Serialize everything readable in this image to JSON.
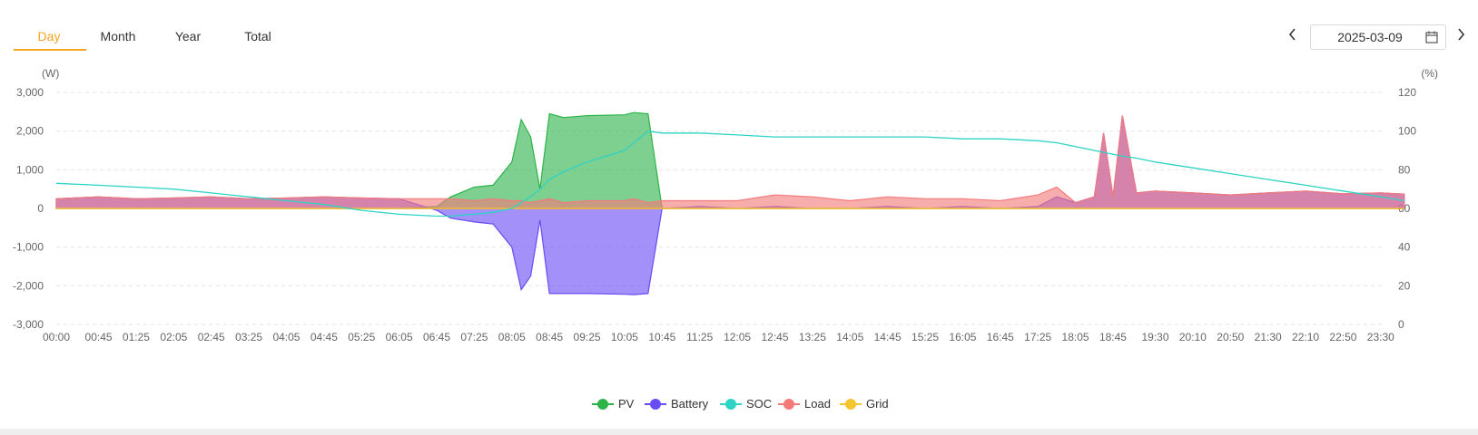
{
  "tabs": [
    {
      "label": "Day",
      "active": true
    },
    {
      "label": "Month",
      "active": false
    },
    {
      "label": "Year",
      "active": false
    },
    {
      "label": "Total",
      "active": false
    }
  ],
  "date_nav": {
    "date": "2025-03-09",
    "prev_icon": "chevron-left-icon",
    "next_icon": "chevron-right-icon",
    "calendar_icon": "calendar-icon"
  },
  "legend": [
    {
      "name": "PV",
      "color": "#2db34a"
    },
    {
      "name": "Battery",
      "color": "#6a4cf5"
    },
    {
      "name": "SOC",
      "color": "#2dd4c4"
    },
    {
      "name": "Load",
      "color": "#f47a7a"
    },
    {
      "name": "Grid",
      "color": "#f5c431"
    }
  ],
  "chart_data": {
    "type": "area",
    "ylabel": "(W)",
    "y2label": "(%)",
    "ylim": [
      -3000,
      3000
    ],
    "y2lim": [
      0,
      120
    ],
    "yticks": [
      "3,000",
      "2,000",
      "1,000",
      "0",
      "-1,000",
      "-2,000",
      "-3,000"
    ],
    "y2ticks": [
      "120",
      "100",
      "80",
      "60",
      "40",
      "20",
      "0"
    ],
    "grid": true,
    "legend_position": "bottom",
    "xticks": [
      "00:00",
      "00:45",
      "01:25",
      "02:05",
      "02:45",
      "03:25",
      "04:05",
      "04:45",
      "05:25",
      "06:05",
      "06:45",
      "07:25",
      "08:05",
      "08:45",
      "09:25",
      "10:05",
      "10:45",
      "11:25",
      "12:05",
      "12:45",
      "13:25",
      "14:05",
      "14:45",
      "15:25",
      "16:05",
      "16:45",
      "17:25",
      "18:05",
      "18:45",
      "19:30",
      "20:10",
      "20:50",
      "21:30",
      "22:10",
      "22:50",
      "23:30"
    ],
    "x": [
      "00:00",
      "00:45",
      "01:25",
      "02:05",
      "02:45",
      "03:25",
      "04:05",
      "04:45",
      "05:25",
      "06:05",
      "06:45",
      "07:00",
      "07:25",
      "07:45",
      "08:05",
      "08:15",
      "08:25",
      "08:35",
      "08:45",
      "09:00",
      "09:25",
      "10:05",
      "10:15",
      "10:30",
      "10:45",
      "11:25",
      "12:05",
      "12:45",
      "13:25",
      "14:05",
      "14:45",
      "15:25",
      "16:05",
      "16:45",
      "17:25",
      "17:45",
      "18:05",
      "18:25",
      "18:35",
      "18:45",
      "18:55",
      "19:10",
      "19:30",
      "20:10",
      "20:50",
      "21:30",
      "22:10",
      "22:50",
      "23:30",
      "23:55"
    ],
    "series": [
      {
        "name": "PV",
        "unit": "W",
        "values": [
          0,
          0,
          0,
          0,
          0,
          0,
          0,
          0,
          0,
          0,
          50,
          300,
          550,
          600,
          1200,
          2300,
          1850,
          500,
          2450,
          2350,
          2400,
          2420,
          2480,
          2450,
          0,
          0,
          0,
          0,
          0,
          0,
          0,
          0,
          0,
          0,
          0,
          0,
          0,
          0,
          0,
          0,
          0,
          0,
          0,
          0,
          0,
          0,
          0,
          0,
          0,
          0
        ]
      },
      {
        "name": "Battery",
        "unit": "W",
        "values": [
          250,
          300,
          250,
          270,
          300,
          250,
          270,
          300,
          270,
          250,
          -50,
          -250,
          -350,
          -400,
          -1000,
          -2100,
          -1750,
          -300,
          -2200,
          -2200,
          -2200,
          -2220,
          -2230,
          -2200,
          0,
          50,
          0,
          50,
          0,
          0,
          50,
          0,
          50,
          0,
          50,
          300,
          150,
          300,
          1950,
          300,
          2400,
          400,
          450,
          400,
          350,
          400,
          450,
          380,
          400,
          370
        ]
      },
      {
        "name": "SOC",
        "unit": "%",
        "values": [
          73,
          72,
          71,
          70,
          68,
          66,
          64,
          62,
          59,
          57,
          56,
          56,
          57,
          58,
          60,
          63,
          66,
          70,
          75,
          79,
          84,
          90,
          94,
          100,
          99,
          99,
          98,
          97,
          97,
          97,
          97,
          97,
          96,
          96,
          95,
          94,
          92,
          90,
          89,
          88,
          87,
          86,
          84,
          81,
          78,
          75,
          72,
          69,
          66,
          64
        ]
      },
      {
        "name": "Load",
        "unit": "W",
        "values": [
          250,
          300,
          250,
          270,
          300,
          250,
          270,
          300,
          270,
          250,
          250,
          250,
          200,
          250,
          200,
          200,
          150,
          200,
          250,
          150,
          200,
          200,
          250,
          150,
          200,
          200,
          200,
          350,
          300,
          200,
          300,
          250,
          250,
          200,
          350,
          550,
          150,
          300,
          1950,
          300,
          2400,
          400,
          450,
          400,
          350,
          400,
          450,
          380,
          400,
          370
        ]
      },
      {
        "name": "Grid",
        "unit": "W",
        "values": [
          0,
          0,
          0,
          0,
          0,
          0,
          0,
          0,
          0,
          0,
          0,
          0,
          0,
          0,
          0,
          0,
          0,
          0,
          0,
          0,
          0,
          0,
          0,
          0,
          0,
          0,
          0,
          0,
          0,
          0,
          0,
          0,
          0,
          0,
          0,
          0,
          0,
          0,
          0,
          0,
          0,
          0,
          0,
          0,
          0,
          0,
          0,
          0,
          0,
          0
        ]
      }
    ]
  }
}
